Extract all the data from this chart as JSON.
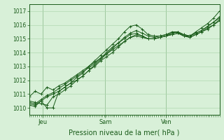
{
  "bg_color": "#d8f0d8",
  "grid_color": "#b0d8b0",
  "line_color": "#1a5c1a",
  "ylim": [
    1009.5,
    1017.5
  ],
  "yticks": [
    1010,
    1011,
    1012,
    1013,
    1014,
    1015,
    1016,
    1017
  ],
  "x_tick_labels": [
    "Jeu",
    "Sam",
    "Ven"
  ],
  "x_tick_positions": [
    0.07,
    0.4,
    0.72
  ],
  "xlabel": "Pression niveau de la mer( hPa )",
  "series": [
    [
      1010.3,
      1010.2,
      1010.5,
      1010.0,
      1010.0,
      1011.2,
      1011.5,
      1011.8,
      1012.2,
      1012.5,
      1013.0,
      1013.4,
      1013.8,
      1014.2,
      1014.6,
      1015.0,
      1015.5,
      1015.9,
      1016.0,
      1015.7,
      1015.3,
      1015.2,
      1015.2,
      1015.3,
      1015.5,
      1015.5,
      1015.2,
      1015.2,
      1015.5,
      1015.8,
      1016.1,
      1016.5,
      1017.0
    ],
    [
      1010.5,
      1010.4,
      1010.3,
      1010.2,
      1010.8,
      1011.0,
      1011.3,
      1011.6,
      1012.0,
      1012.3,
      1012.7,
      1013.1,
      1013.5,
      1013.9,
      1014.3,
      1014.7,
      1015.1,
      1015.4,
      1015.6,
      1015.4,
      1015.2,
      1015.1,
      1015.2,
      1015.3,
      1015.4,
      1015.5,
      1015.3,
      1015.2,
      1015.4,
      1015.6,
      1015.9,
      1016.2,
      1016.5
    ],
    [
      1010.2,
      1010.1,
      1010.5,
      1010.8,
      1011.0,
      1011.2,
      1011.5,
      1011.8,
      1012.0,
      1012.3,
      1012.7,
      1013.0,
      1013.4,
      1013.7,
      1014.0,
      1014.4,
      1014.8,
      1015.1,
      1015.3,
      1015.2,
      1015.0,
      1015.0,
      1015.1,
      1015.2,
      1015.3,
      1015.4,
      1015.2,
      1015.1,
      1015.3,
      1015.5,
      1015.8,
      1016.0,
      1016.4
    ],
    [
      1010.8,
      1011.2,
      1011.0,
      1011.5,
      1011.3,
      1011.6,
      1011.8,
      1012.1,
      1012.4,
      1012.7,
      1013.0,
      1013.3,
      1013.6,
      1013.9,
      1014.2,
      1014.5,
      1014.8,
      1015.1,
      1015.2,
      1015.1,
      1015.0,
      1015.0,
      1015.1,
      1015.2,
      1015.3,
      1015.4,
      1015.2,
      1015.1,
      1015.3,
      1015.5,
      1015.7,
      1016.0,
      1016.3
    ],
    [
      1010.4,
      1010.3,
      1010.6,
      1010.9,
      1011.1,
      1011.4,
      1011.7,
      1012.0,
      1012.3,
      1012.6,
      1012.9,
      1013.2,
      1013.6,
      1014.0,
      1014.4,
      1014.7,
      1015.0,
      1015.3,
      1015.4,
      1015.2,
      1015.0,
      1015.0,
      1015.1,
      1015.2,
      1015.4,
      1015.5,
      1015.3,
      1015.2,
      1015.4,
      1015.6,
      1015.9,
      1016.2,
      1016.6
    ]
  ]
}
